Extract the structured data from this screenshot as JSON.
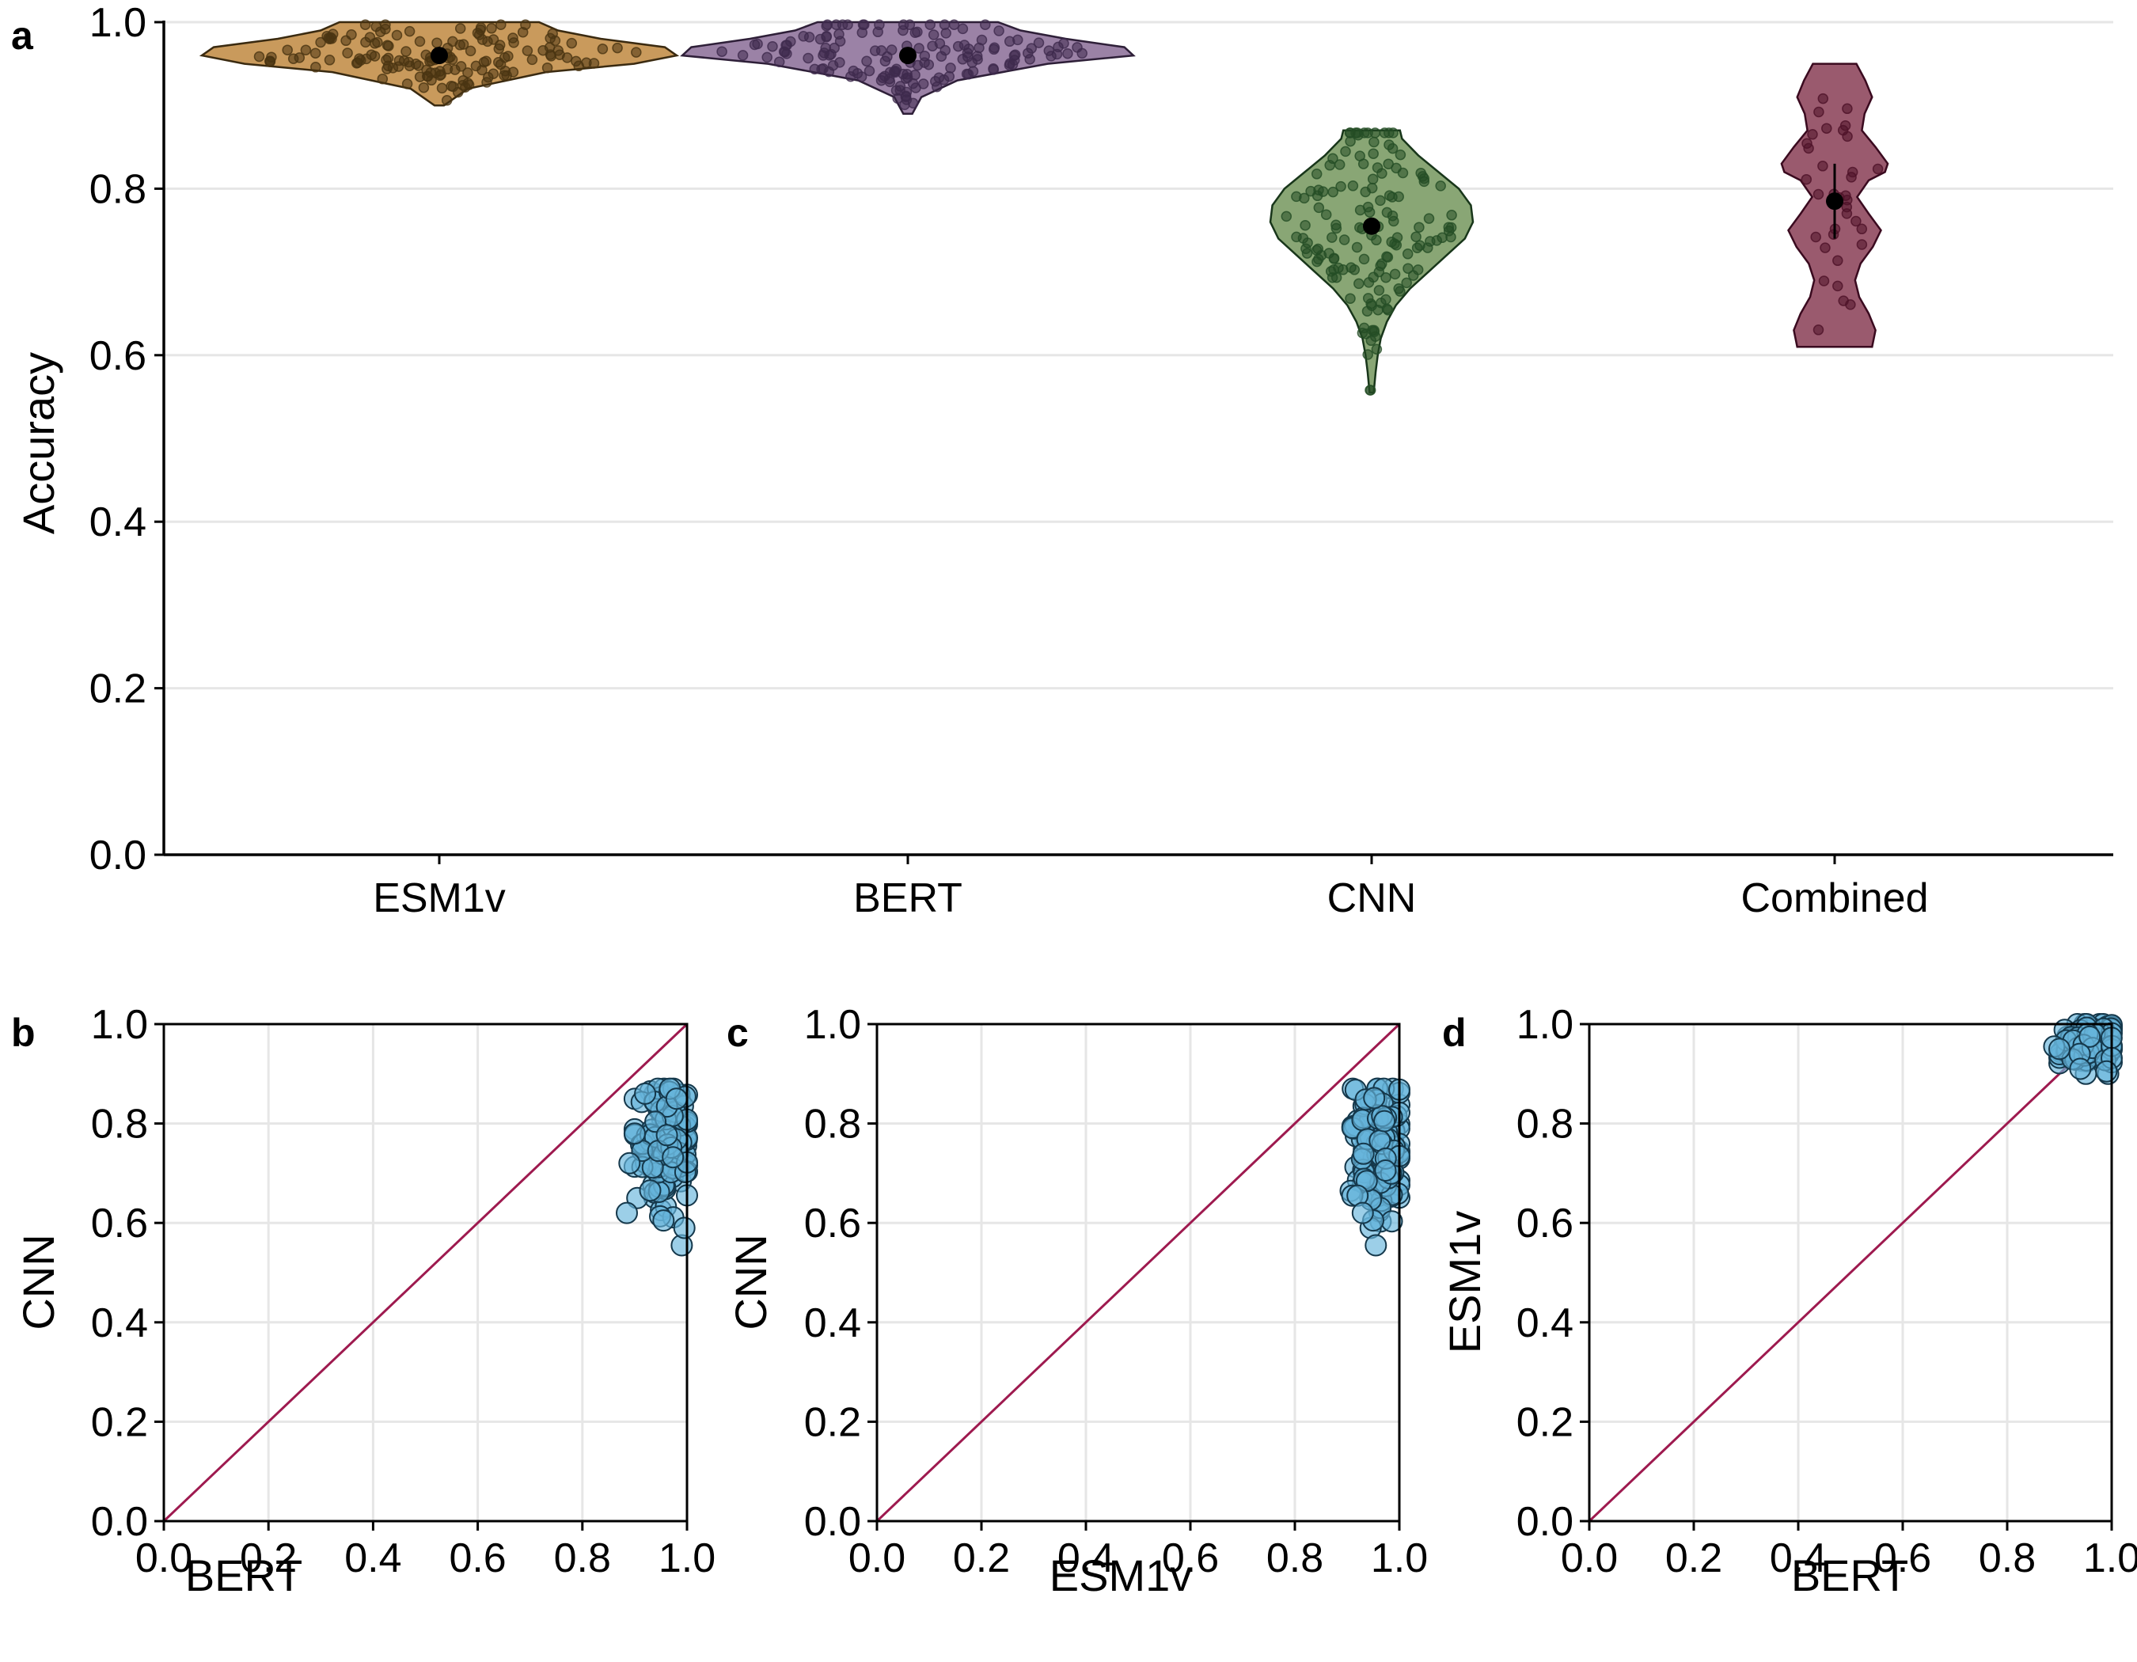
{
  "colors": {
    "gridline": "#e6e6e6",
    "axis": "#000000",
    "identity_line": "#9e1a4f",
    "scatter_fill": "#67b6dc",
    "scatter_stroke": "#15384b",
    "mean_marker": "#000000"
  },
  "chart_data": [
    {
      "panel": "a",
      "type": "violin",
      "ylabel": "Accuracy",
      "ylim": [
        0.0,
        1.0
      ],
      "yticks": [
        "0.0",
        "0.2",
        "0.4",
        "0.6",
        "0.8",
        "1.0"
      ],
      "categories": [
        "ESM1v",
        "BERT",
        "CNN",
        "Combined"
      ],
      "grid": "horizontal",
      "series": [
        {
          "category": "ESM1v",
          "fill": "#c99a5c",
          "stroke": "#3a2a10",
          "point_color": "#4a3412",
          "mean": 0.96,
          "range": [
            0.9,
            1.0
          ],
          "n_points": 150,
          "profile": [
            [
              0.9,
              0.02
            ],
            [
              0.92,
              0.12
            ],
            [
              0.94,
              0.45
            ],
            [
              0.95,
              0.82
            ],
            [
              0.96,
              1.0
            ],
            [
              0.97,
              0.95
            ],
            [
              0.98,
              0.68
            ],
            [
              0.99,
              0.5
            ],
            [
              1.0,
              0.42
            ]
          ]
        },
        {
          "category": "BERT",
          "fill": "#9b82a6",
          "stroke": "#2e1f38",
          "point_color": "#3e2a4d",
          "mean": 0.96,
          "range": [
            0.89,
            1.0
          ],
          "n_points": 150,
          "profile": [
            [
              0.89,
              0.02
            ],
            [
              0.91,
              0.06
            ],
            [
              0.93,
              0.22
            ],
            [
              0.95,
              0.62
            ],
            [
              0.96,
              1.0
            ],
            [
              0.97,
              0.96
            ],
            [
              0.98,
              0.7
            ],
            [
              0.99,
              0.5
            ],
            [
              1.0,
              0.4
            ]
          ]
        },
        {
          "category": "CNN",
          "fill": "#89a675",
          "stroke": "#18361a",
          "point_color": "#244d25",
          "mean": 0.755,
          "range": [
            0.555,
            0.87
          ],
          "n_points": 150,
          "profile": [
            [
              0.555,
              0.02
            ],
            [
              0.58,
              0.04
            ],
            [
              0.6,
              0.06
            ],
            [
              0.62,
              0.09
            ],
            [
              0.64,
              0.15
            ],
            [
              0.66,
              0.24
            ],
            [
              0.68,
              0.38
            ],
            [
              0.7,
              0.56
            ],
            [
              0.72,
              0.74
            ],
            [
              0.74,
              0.92
            ],
            [
              0.76,
              1.0
            ],
            [
              0.78,
              0.98
            ],
            [
              0.8,
              0.86
            ],
            [
              0.82,
              0.66
            ],
            [
              0.84,
              0.46
            ],
            [
              0.86,
              0.3
            ],
            [
              0.87,
              0.28
            ]
          ]
        },
        {
          "category": "Combined",
          "fill": "#9a5a6e",
          "stroke": "#3a0a1f",
          "point_color": "#4e1228",
          "mean": 0.785,
          "range": [
            0.61,
            0.95
          ],
          "n_points": 35,
          "ci": [
            0.74,
            0.83
          ],
          "profile": [
            [
              0.61,
              0.55
            ],
            [
              0.63,
              0.6
            ],
            [
              0.65,
              0.5
            ],
            [
              0.67,
              0.36
            ],
            [
              0.69,
              0.3
            ],
            [
              0.71,
              0.38
            ],
            [
              0.73,
              0.56
            ],
            [
              0.75,
              0.68
            ],
            [
              0.77,
              0.5
            ],
            [
              0.79,
              0.33
            ],
            [
              0.81,
              0.5
            ],
            [
              0.82,
              0.74
            ],
            [
              0.83,
              0.78
            ],
            [
              0.85,
              0.6
            ],
            [
              0.87,
              0.4
            ],
            [
              0.89,
              0.44
            ],
            [
              0.91,
              0.55
            ],
            [
              0.93,
              0.45
            ],
            [
              0.95,
              0.32
            ]
          ]
        }
      ]
    },
    {
      "panel": "b",
      "type": "scatter",
      "xlabel": "BERT",
      "ylabel": "CNN",
      "xlim": [
        0.0,
        1.0
      ],
      "ylim": [
        0.0,
        1.0
      ],
      "xticks": [
        "0.0",
        "0.2",
        "0.4",
        "0.6",
        "0.8",
        "1.0"
      ],
      "yticks": [
        "0.0",
        "0.2",
        "0.4",
        "0.6",
        "0.8",
        "1.0"
      ],
      "grid": true,
      "identity_line": true,
      "cluster": {
        "n_points": 150,
        "x_range": [
          0.9,
          1.0
        ],
        "y_range": [
          0.6,
          0.87
        ],
        "x_center": 0.96,
        "y_center": 0.755
      },
      "points": [
        [
          0.885,
          0.62
        ],
        [
          0.89,
          0.72
        ],
        [
          0.955,
          0.605
        ],
        [
          0.99,
          0.555
        ],
        [
          0.995,
          0.59
        ],
        [
          0.9,
          0.78
        ],
        [
          0.92,
          0.86
        ],
        [
          0.98,
          0.85
        ]
      ]
    },
    {
      "panel": "c",
      "type": "scatter",
      "xlabel": "ESM1v",
      "ylabel": "CNN",
      "xlim": [
        0.0,
        1.0
      ],
      "ylim": [
        0.0,
        1.0
      ],
      "xticks": [
        "0.0",
        "0.2",
        "0.4",
        "0.6",
        "0.8",
        "1.0"
      ],
      "yticks": [
        "0.0",
        "0.2",
        "0.4",
        "0.6",
        "0.8",
        "1.0"
      ],
      "grid": true,
      "identity_line": true,
      "cluster": {
        "n_points": 150,
        "x_range": [
          0.9,
          1.0
        ],
        "y_range": [
          0.58,
          0.87
        ],
        "x_center": 0.96,
        "y_center": 0.755
      },
      "points": [
        [
          0.91,
          0.655
        ],
        [
          0.92,
          0.655
        ],
        [
          0.945,
          0.59
        ],
        [
          0.95,
          0.605
        ],
        [
          0.955,
          0.555
        ],
        [
          0.93,
          0.62
        ]
      ]
    },
    {
      "panel": "d",
      "type": "scatter",
      "xlabel": "BERT",
      "ylabel": "ESM1v",
      "xlim": [
        0.0,
        1.0
      ],
      "ylim": [
        0.0,
        1.0
      ],
      "xticks": [
        "0.0",
        "0.2",
        "0.4",
        "0.6",
        "0.8",
        "1.0"
      ],
      "yticks": [
        "0.0",
        "0.2",
        "0.4",
        "0.6",
        "0.8",
        "1.0"
      ],
      "grid": true,
      "identity_line": true,
      "cluster": {
        "n_points": 150,
        "x_range": [
          0.9,
          1.0
        ],
        "y_range": [
          0.9,
          1.0
        ],
        "x_center": 0.96,
        "y_center": 0.96
      },
      "points": [
        [
          0.89,
          0.955
        ],
        [
          0.9,
          0.95
        ],
        [
          0.99,
          0.905
        ],
        [
          0.94,
          0.91
        ]
      ]
    }
  ]
}
